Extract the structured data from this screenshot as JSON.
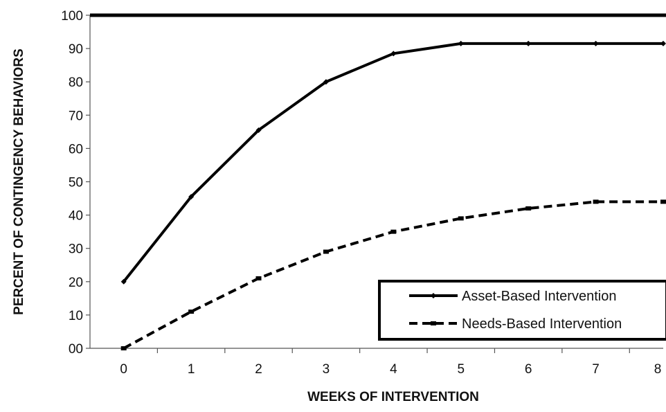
{
  "chart_data": {
    "type": "line",
    "title": "",
    "xlabel": "WEEKS OF INTERVENTION",
    "ylabel": "PERCENT OF CONTINGENCY BEHAVIORS",
    "x": [
      0,
      1,
      2,
      3,
      4,
      5,
      6,
      7,
      8
    ],
    "x_tick_labels": [
      "0",
      "1",
      "2",
      "3",
      "4",
      "5",
      "6",
      "7",
      "8"
    ],
    "y_tick_labels": [
      "00",
      "10",
      "20",
      "30",
      "40",
      "50",
      "60",
      "70",
      "80",
      "90",
      "100"
    ],
    "ylim": [
      0,
      100
    ],
    "xlim": [
      -0.5,
      8
    ],
    "grid": false,
    "legend_position": "bottom-right",
    "series": [
      {
        "name": "Asset-Based Intervention",
        "style": "solid",
        "color": "#000000",
        "values": [
          20,
          45.5,
          65.5,
          80,
          88.5,
          91.5,
          91.5,
          91.5,
          91.5
        ]
      },
      {
        "name": "Needs-Based Intervention",
        "style": "dashed",
        "color": "#000000",
        "values": [
          0,
          11,
          21,
          29,
          35,
          39,
          42,
          44,
          44
        ]
      }
    ]
  }
}
